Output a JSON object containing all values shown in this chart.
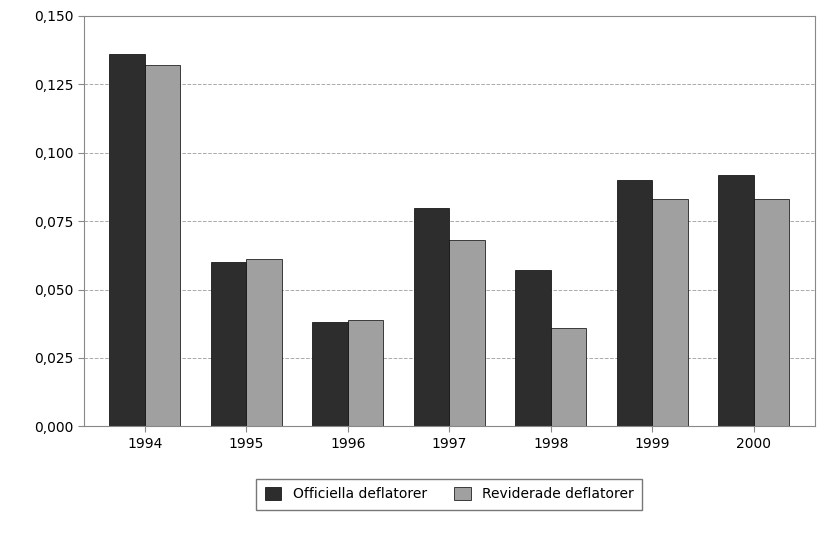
{
  "years": [
    "1994",
    "1995",
    "1996",
    "1997",
    "1998",
    "1999",
    "2000"
  ],
  "officiella": [
    0.136,
    0.06,
    0.038,
    0.08,
    0.057,
    0.09,
    0.092
  ],
  "reviderade": [
    0.132,
    0.061,
    0.039,
    0.068,
    0.036,
    0.083,
    0.083
  ],
  "color_officiella": "#2d2d2d",
  "color_reviderade": "#a0a0a0",
  "ylim": [
    0,
    0.15
  ],
  "yticks": [
    0.0,
    0.025,
    0.05,
    0.075,
    0.1,
    0.125,
    0.15
  ],
  "legend_label_1": "Officiella deflatorer",
  "legend_label_2": "Reviderade deflatorer",
  "background_color": "#ffffff",
  "bar_width": 0.35,
  "grid_color": "#aaaaaa",
  "edge_color": "#000000"
}
